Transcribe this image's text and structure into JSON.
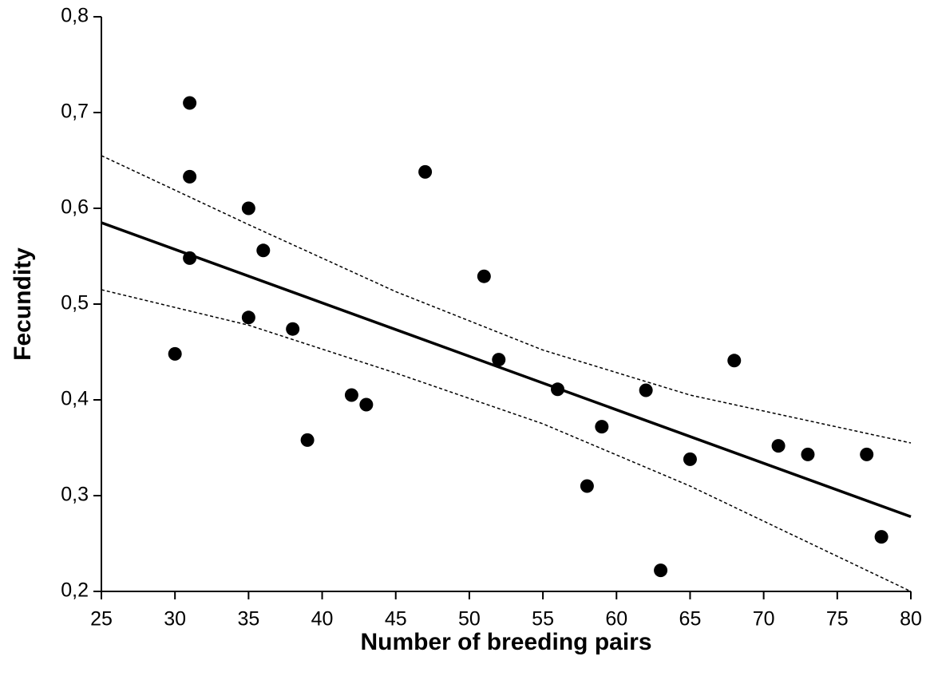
{
  "chart_data": {
    "type": "scatter",
    "x_label": "Number of breeding pairs",
    "y_label": "Fecundity",
    "x": [
      30,
      31,
      31,
      31,
      35,
      35,
      36,
      38,
      39,
      42,
      43,
      47,
      51,
      52,
      56,
      58,
      59,
      62,
      63,
      65,
      68,
      71,
      73,
      77,
      78
    ],
    "values": [
      0.448,
      0.71,
      0.633,
      0.548,
      0.6,
      0.486,
      0.556,
      0.474,
      0.358,
      0.405,
      0.395,
      0.638,
      0.529,
      0.442,
      0.411,
      0.31,
      0.372,
      0.41,
      0.222,
      0.338,
      0.441,
      0.352,
      0.343,
      0.343,
      0.257
    ],
    "color": "#000000",
    "fit_line": {
      "x": [
        25,
        80
      ],
      "y": [
        0.585,
        0.278
      ]
    },
    "confidence_band": {
      "x": [
        25,
        35,
        45,
        55,
        65,
        80
      ],
      "upper": [
        0.655,
        0.583,
        0.513,
        0.452,
        0.405,
        0.355
      ],
      "lower": [
        0.515,
        0.478,
        0.428,
        0.375,
        0.31,
        0.2
      ]
    },
    "xlim": [
      25,
      80
    ],
    "ylim": [
      0.2,
      0.8
    ],
    "xticks": [
      25,
      30,
      35,
      40,
      45,
      50,
      55,
      60,
      65,
      70,
      75,
      80
    ],
    "yticks": [
      {
        "value": 0.2,
        "label": "0,2"
      },
      {
        "value": 0.3,
        "label": "0,3"
      },
      {
        "value": 0.4,
        "label": "0,4"
      },
      {
        "value": 0.5,
        "label": "0,5"
      },
      {
        "value": 0.6,
        "label": "0,6"
      },
      {
        "value": 0.7,
        "label": "0,7"
      },
      {
        "value": 0.8,
        "label": "0,8"
      }
    ],
    "grid": false
  }
}
